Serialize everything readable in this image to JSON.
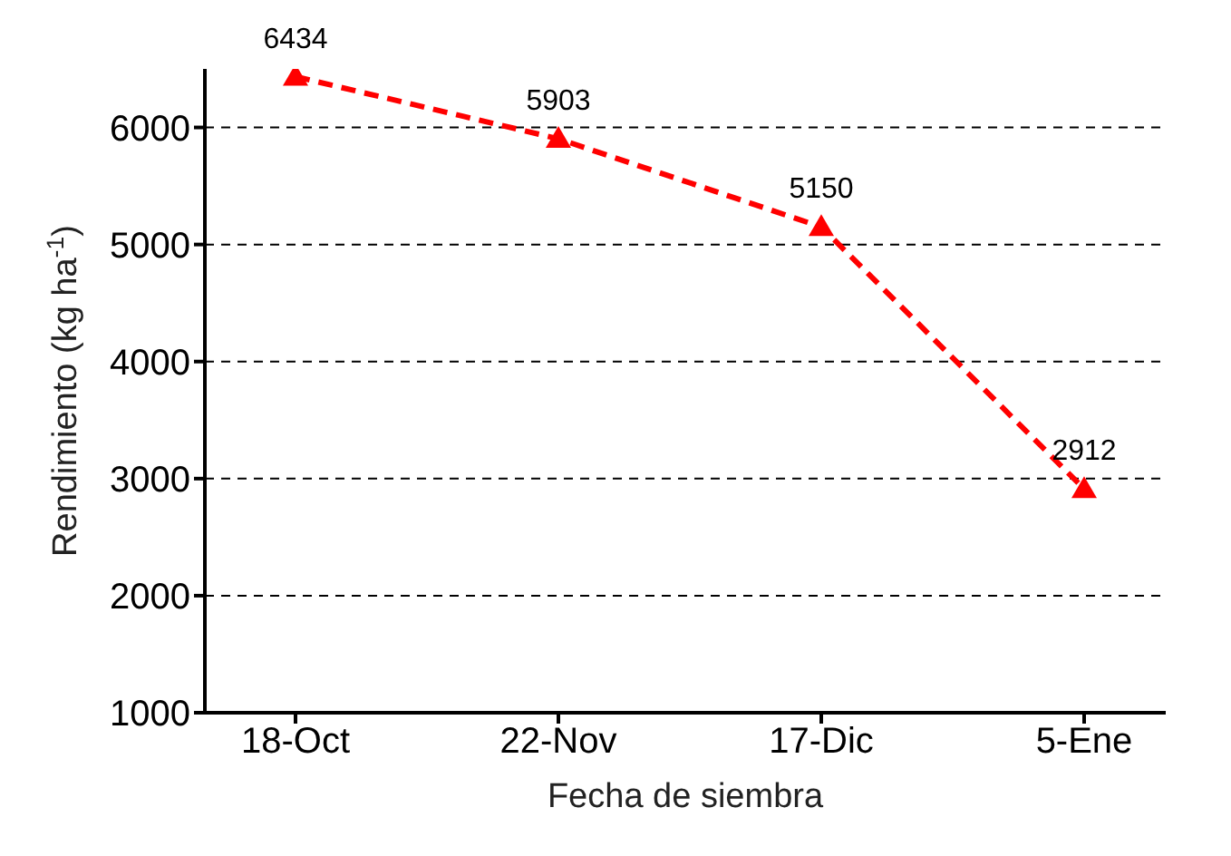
{
  "chart_data": {
    "type": "line",
    "xlabel": "Fecha de siembra",
    "ylabel": "Rendimiento (kg ha$^{-1}$)",
    "categories": [
      "18-Oct",
      "22-Nov",
      "17-Dic",
      "5-Ene"
    ],
    "series": [
      {
        "color": "#ff0000",
        "values": [
          6434,
          5903,
          5150,
          2912
        ]
      }
    ],
    "ylim": [
      1000,
      6500
    ],
    "yticks": [
      1000,
      2000,
      3000,
      4000,
      5000,
      6000
    ],
    "grid": "y",
    "legend": false,
    "marker": "triangle",
    "line_style": "dashed",
    "data_labels": true
  }
}
